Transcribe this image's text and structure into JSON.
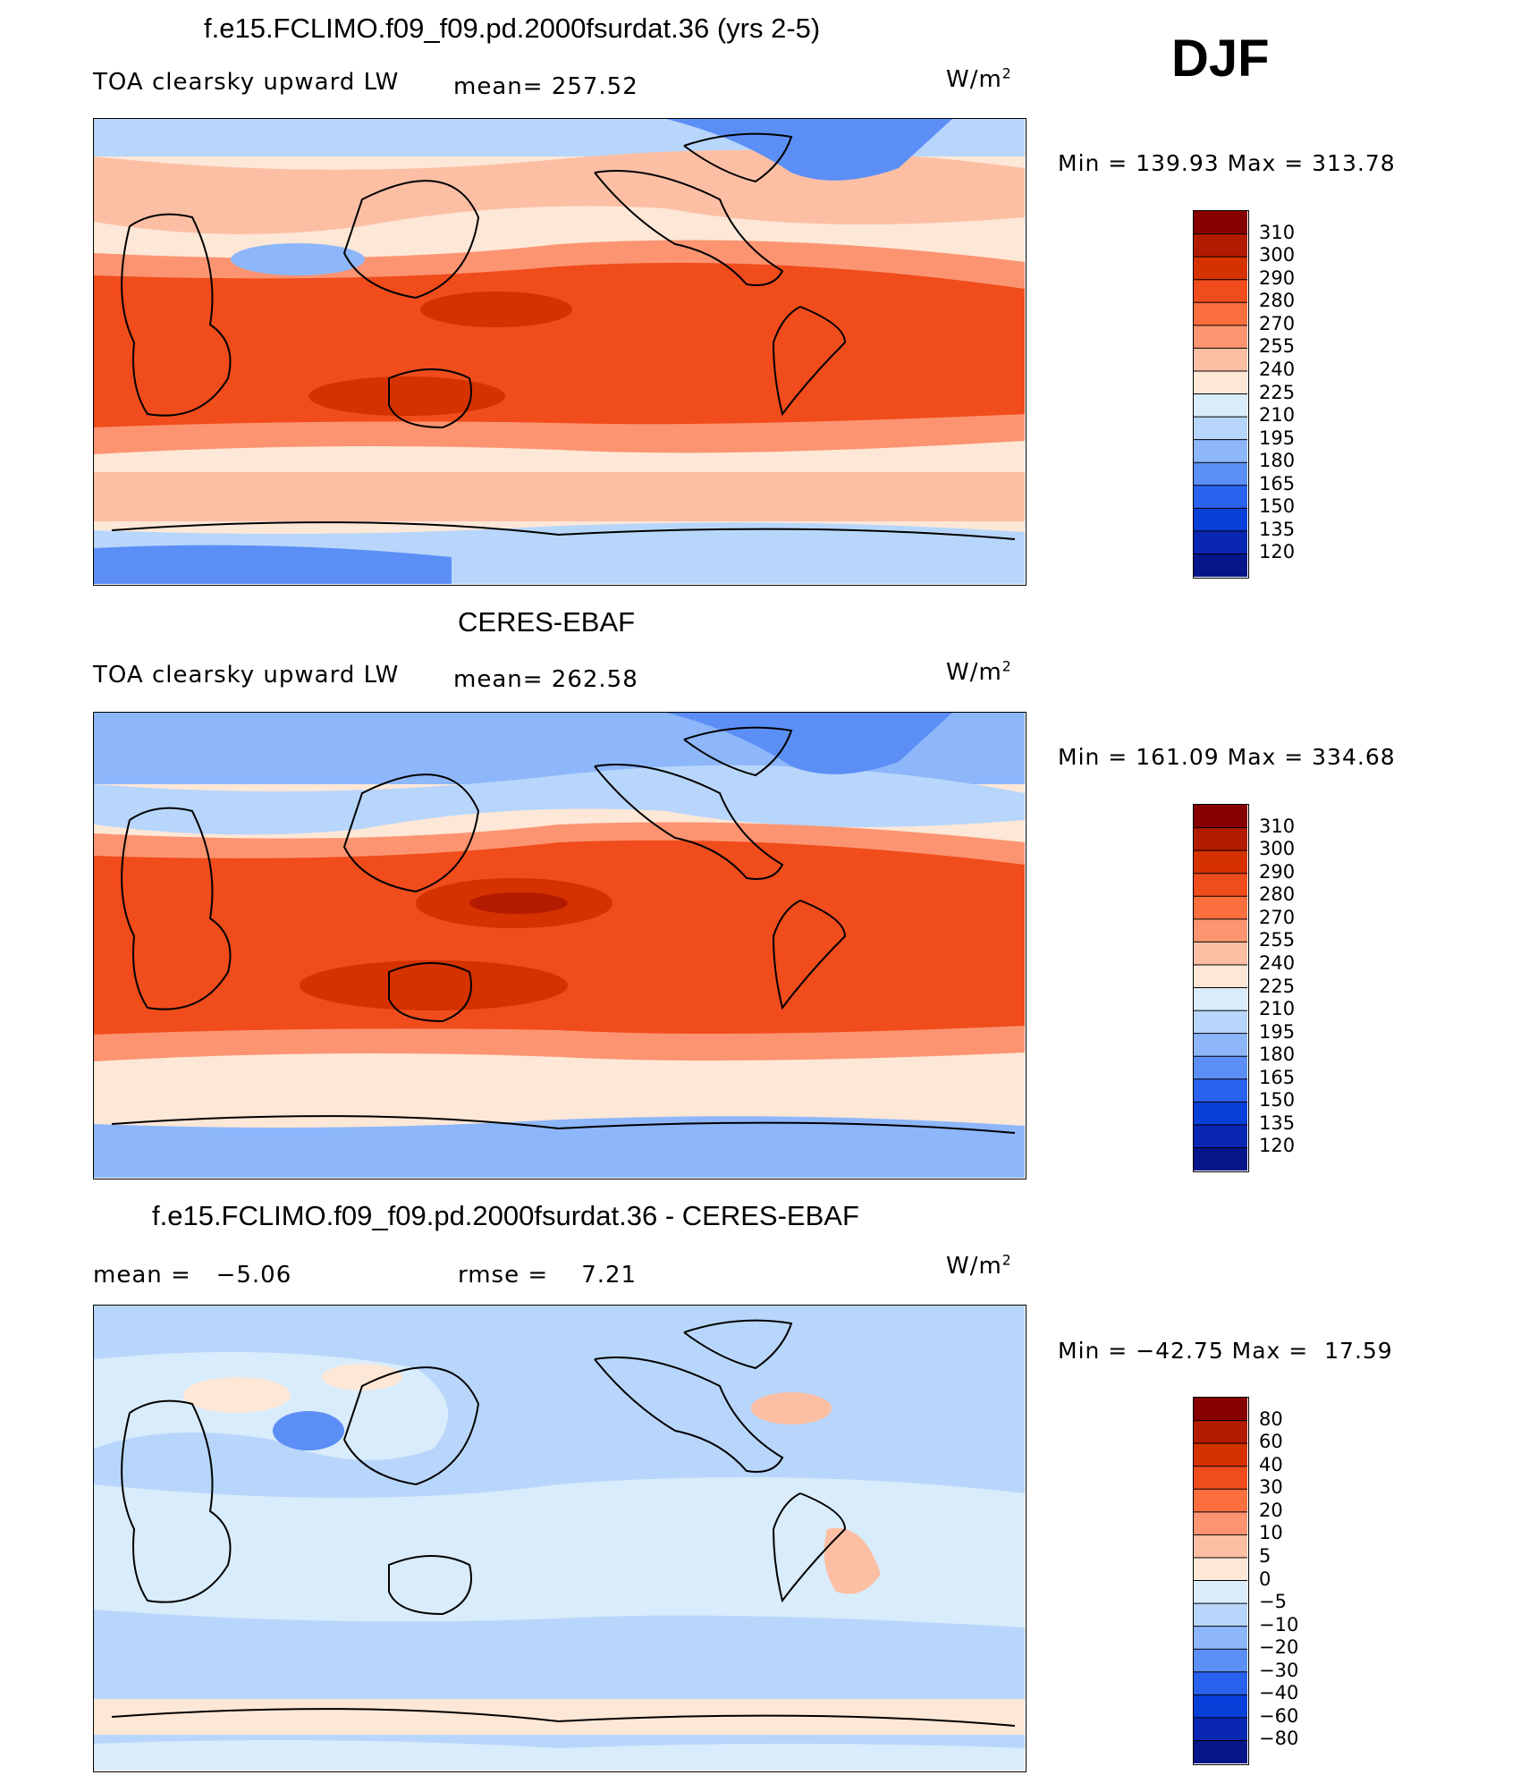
{
  "season_label": "DJF",
  "chart_data": [
    {
      "type": "heatmap",
      "title": "f.e15.FCLIMO.f09_f09.pd.2000fsurdat.36 (yrs 2-5)",
      "subtitle": "TOA clearsky upward LW",
      "mean_text": "mean= 257.52",
      "units": "W/m",
      "units_exp": "2",
      "minmax_text": "Min = 139.93 Max = 313.78",
      "colorbar_levels": [
        "310",
        "300",
        "290",
        "280",
        "270",
        "255",
        "240",
        "225",
        "210",
        "195",
        "180",
        "165",
        "150",
        "135",
        "120"
      ],
      "colorbar_colors": [
        "#860000",
        "#b31b00",
        "#d53200",
        "#f04c1c",
        "#fb6f3f",
        "#fc9471",
        "#fdbfa4",
        "#fde7d7",
        "#d9ecfb",
        "#b8d6fb",
        "#8db7fa",
        "#5c8ff6",
        "#2a62f0",
        "#083fd8",
        "#0a27b4",
        "#061587"
      ]
    },
    {
      "type": "heatmap",
      "title": "CERES-EBAF",
      "subtitle": "TOA clearsky upward LW",
      "mean_text": "mean= 262.58",
      "units": "W/m",
      "units_exp": "2",
      "minmax_text": "Min = 161.09 Max = 334.68",
      "colorbar_levels": [
        "310",
        "300",
        "290",
        "280",
        "270",
        "255",
        "240",
        "225",
        "210",
        "195",
        "180",
        "165",
        "150",
        "135",
        "120"
      ],
      "colorbar_colors": [
        "#860000",
        "#b31b00",
        "#d53200",
        "#f04c1c",
        "#fb6f3f",
        "#fc9471",
        "#fdbfa4",
        "#fde7d7",
        "#d9ecfb",
        "#b8d6fb",
        "#8db7fa",
        "#5c8ff6",
        "#2a62f0",
        "#083fd8",
        "#0a27b4",
        "#061587"
      ]
    },
    {
      "type": "heatmap",
      "title": "f.e15.FCLIMO.f09_f09.pd.2000fsurdat.36 - CERES-EBAF",
      "mean_text": "mean =   −5.06",
      "rmse_text": "rmse =    7.21",
      "units": "W/m",
      "units_exp": "2",
      "minmax_text": "Min = −42.75 Max =  17.59",
      "colorbar_levels": [
        "80",
        "60",
        "40",
        "30",
        "20",
        "10",
        "5",
        "0",
        "−5",
        "−10",
        "−20",
        "−30",
        "−40",
        "−60",
        "−80"
      ],
      "colorbar_colors": [
        "#860000",
        "#b31b00",
        "#d53200",
        "#f04c1c",
        "#fb6f3f",
        "#fc9471",
        "#fdbfa4",
        "#fde7d7",
        "#d9ecfb",
        "#b8d6fb",
        "#8db7fa",
        "#5c8ff6",
        "#2a62f0",
        "#083fd8",
        "#0a27b4",
        "#061587"
      ]
    }
  ]
}
